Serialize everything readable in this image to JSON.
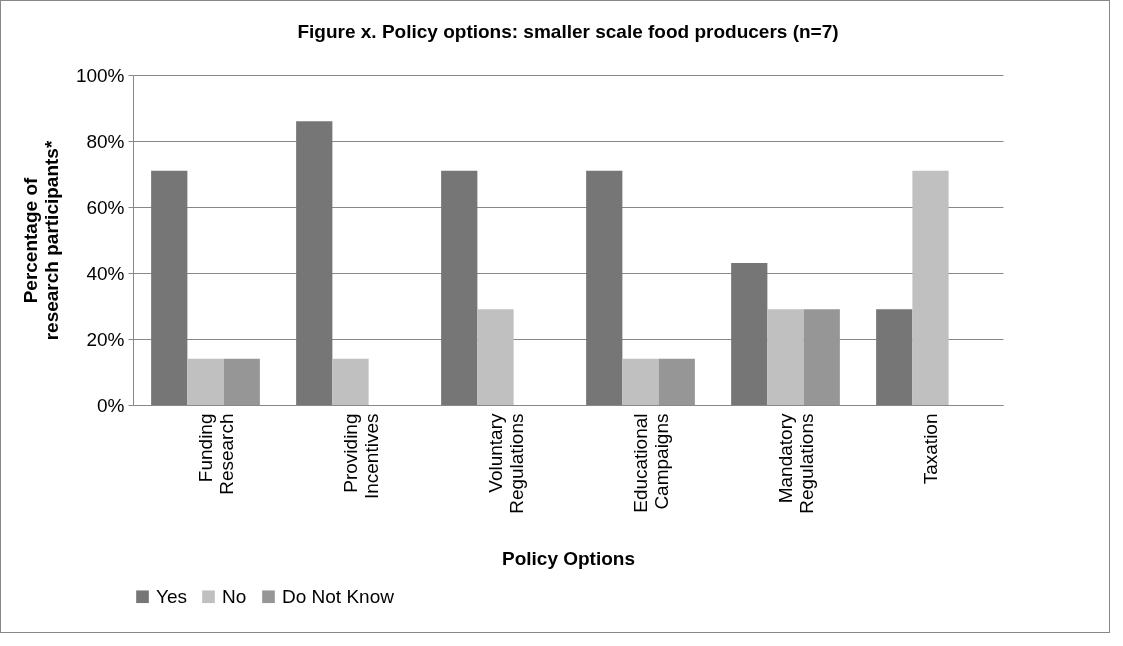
{
  "chart_data": {
    "type": "bar",
    "title": "Figure x. Policy options: smaller scale food producers (n=7)",
    "xlabel": "Policy Options",
    "ylabel": "Percentage of research participants*",
    "categories": [
      "Funding Research",
      "Providing Incentives",
      "Voluntary Regulations",
      "Educational Campaigns",
      "Mandatory Regulations",
      "Taxation"
    ],
    "series": [
      {
        "name": "Yes",
        "color": "#767676",
        "values": [
          71,
          86,
          71,
          71,
          43,
          29
        ]
      },
      {
        "name": "No",
        "color": "#c0c0c0",
        "values": [
          14,
          14,
          29,
          14,
          29,
          71
        ]
      },
      {
        "name": "Do Not Know",
        "color": "#969696",
        "values": [
          14,
          0,
          0,
          14,
          29,
          0
        ]
      }
    ],
    "ylim": [
      0,
      100
    ],
    "yticks": [
      {
        "value": 0,
        "label": "0%"
      },
      {
        "value": 20,
        "label": "20%"
      },
      {
        "value": 40,
        "label": "40%"
      },
      {
        "value": 60,
        "label": "60%"
      },
      {
        "value": 80,
        "label": "80%"
      },
      {
        "value": 100,
        "label": "100%"
      }
    ],
    "grid": "y",
    "legend": "bottom"
  }
}
